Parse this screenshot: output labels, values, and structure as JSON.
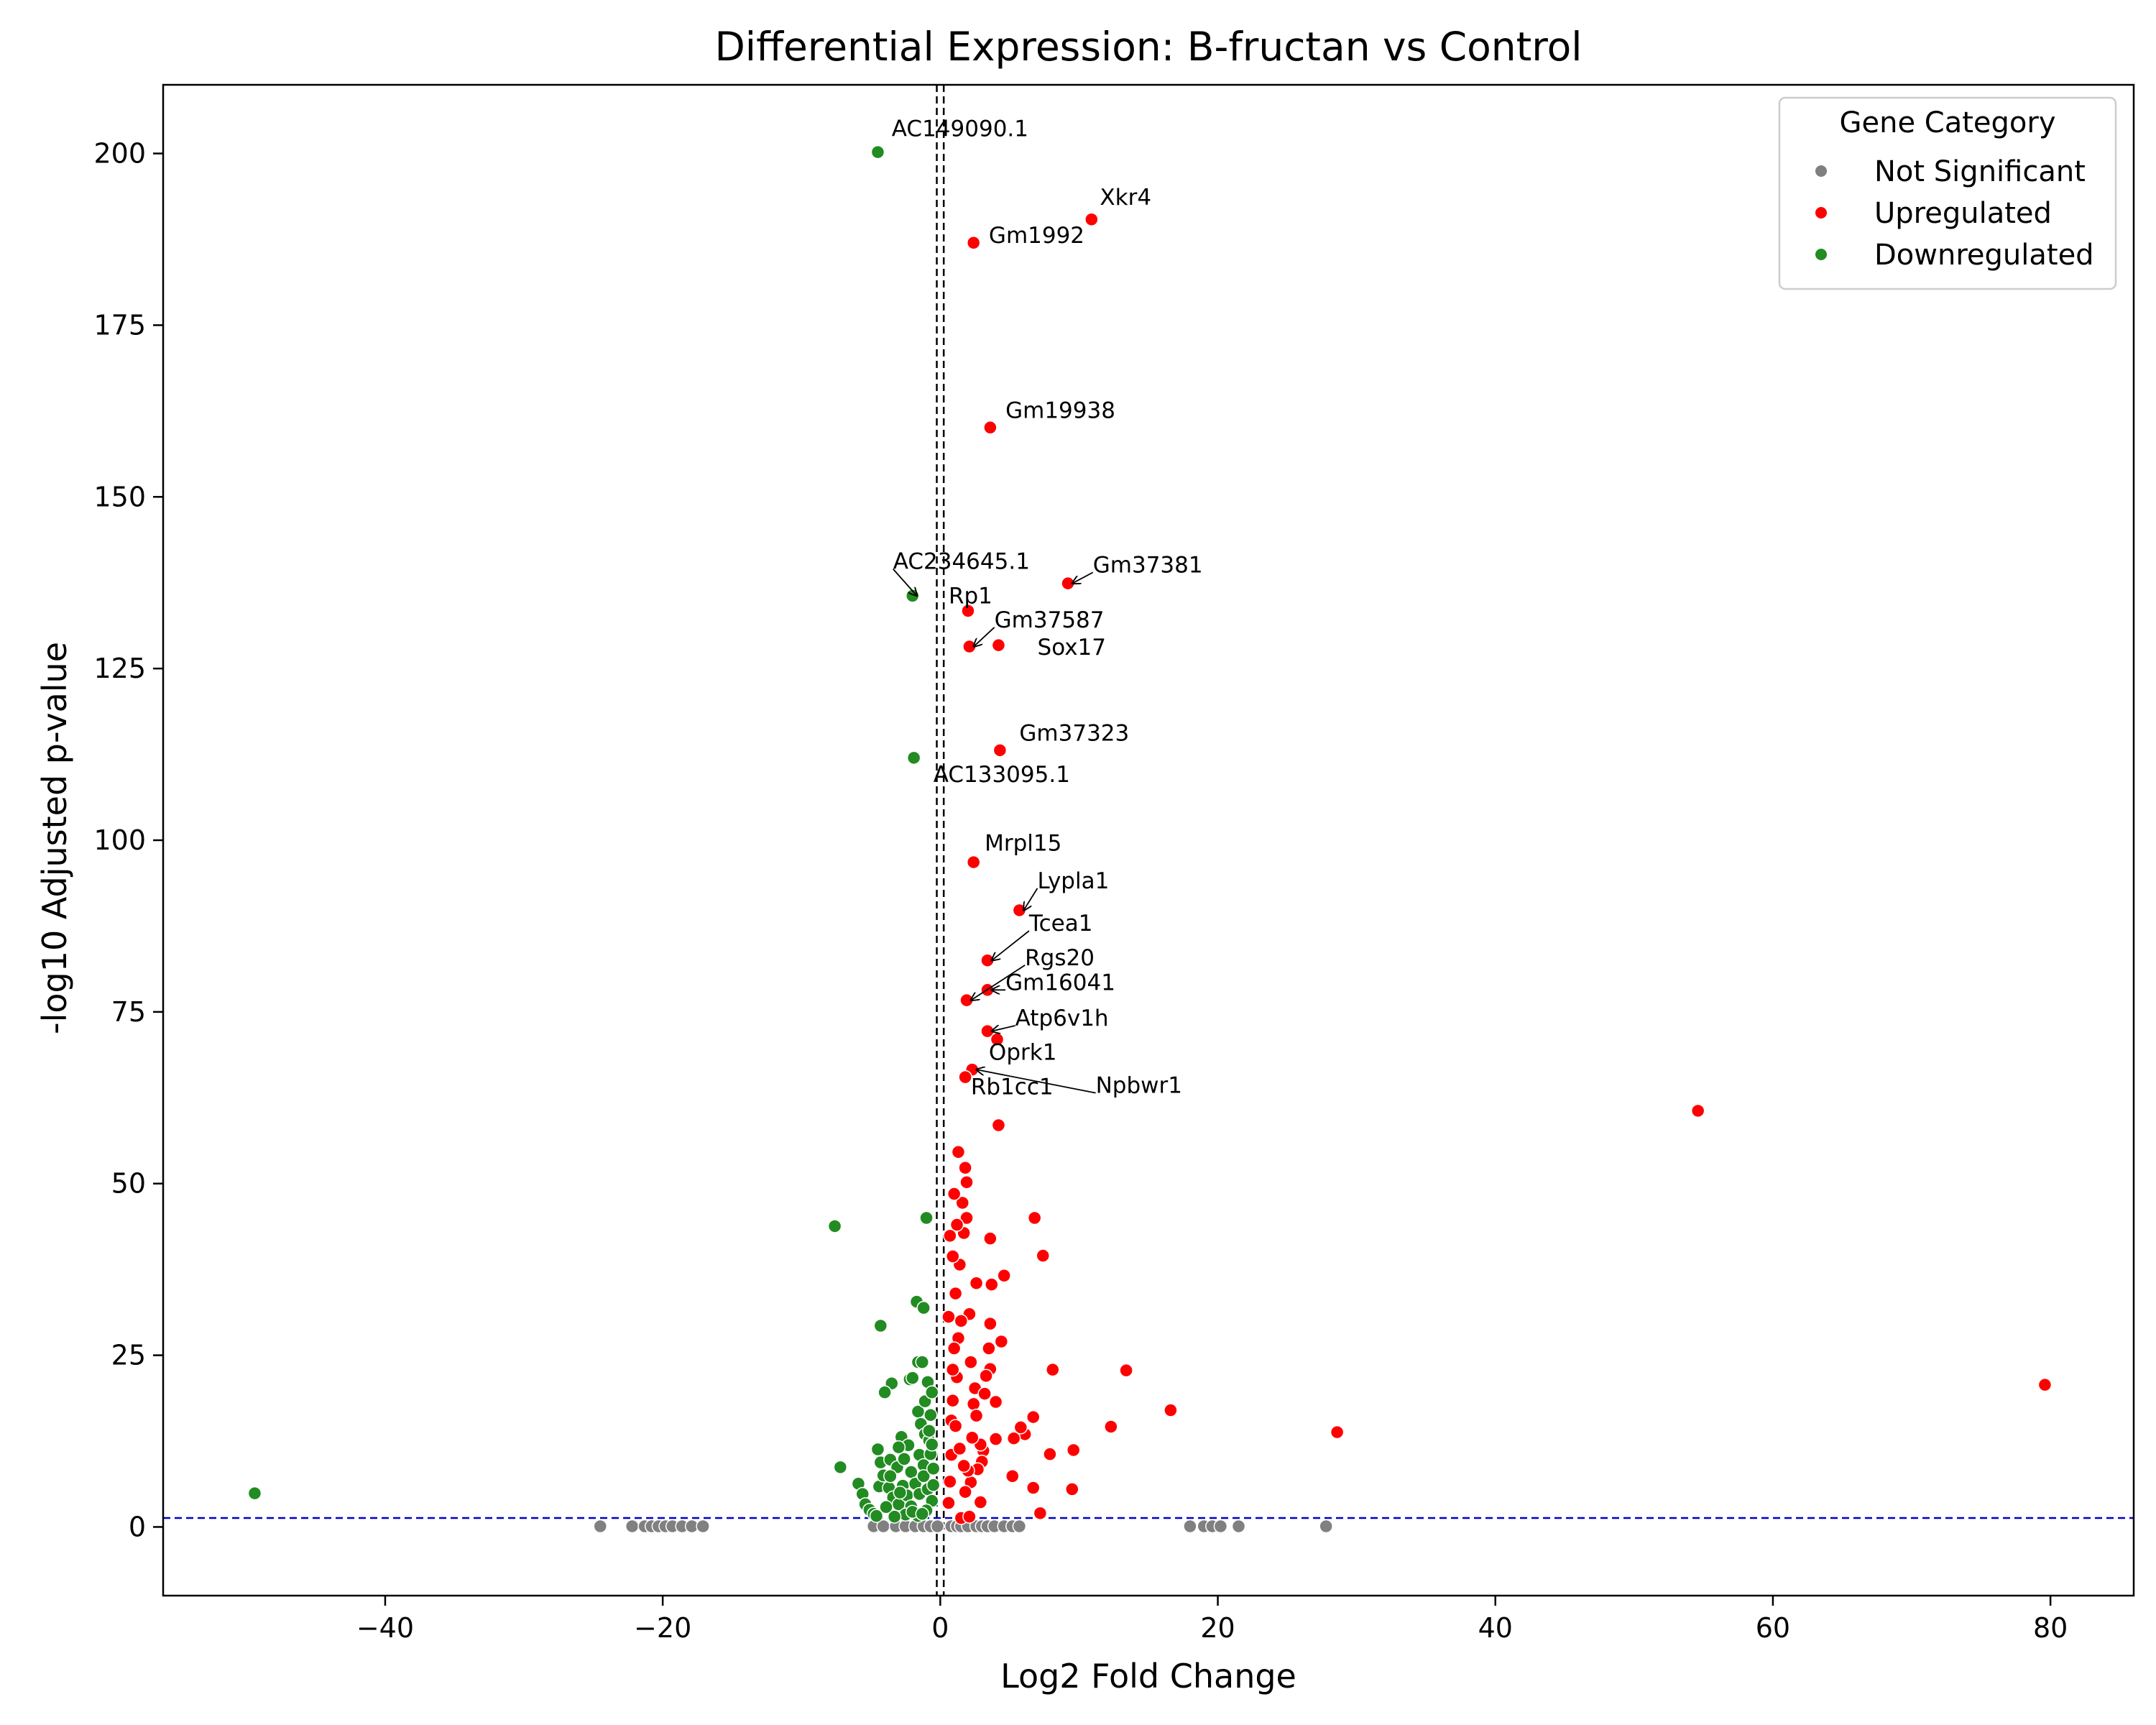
{
  "chart_data": {
    "type": "scatter",
    "title": "Differential Expression: B-fructan vs Control",
    "xlabel": "Log2 Fold Change",
    "ylabel": "-log10 Adjusted p-value",
    "xlim": [
      -56,
      86
    ],
    "ylim": [
      -10,
      210
    ],
    "xticks": [
      -40,
      -20,
      0,
      20,
      40,
      60,
      80
    ],
    "yticks": [
      0,
      25,
      50,
      75,
      100,
      125,
      150,
      175,
      200
    ],
    "tick_labels_x": [
      "−40",
      "−20",
      "0",
      "20",
      "40",
      "60",
      "80"
    ],
    "tick_labels_y": [
      "0",
      "25",
      "50",
      "75",
      "100",
      "125",
      "150",
      "175",
      "200"
    ],
    "grid": false,
    "thresholds": {
      "pvalue_line": 1.3,
      "fold_change_lines": [
        -0.25,
        0.25
      ],
      "pvalue_color": "#0000cc",
      "fold_change_color": "#000000"
    },
    "legend": {
      "title": "Gene Category",
      "placement": "top-right",
      "entries": [
        "Not Significant",
        "Upregulated",
        "Downregulated"
      ]
    },
    "colors": {
      "Not Significant": "#808080",
      "Upregulated": "#ff0000",
      "Downregulated": "#228b22"
    },
    "series": [
      {
        "name": "Not Significant",
        "points": [
          [
            -24.5,
            0.1
          ],
          [
            -22.2,
            0.1
          ],
          [
            -21.3,
            0.1
          ],
          [
            -20.8,
            0.1
          ],
          [
            -20.3,
            0.1
          ],
          [
            -19.8,
            0.1
          ],
          [
            -19.3,
            0.1
          ],
          [
            -18.6,
            0.1
          ],
          [
            -17.9,
            0.1
          ],
          [
            -17.1,
            0.1
          ],
          [
            -4.8,
            0.1
          ],
          [
            -4.1,
            0.1
          ],
          [
            -3.2,
            0.1
          ],
          [
            -2.5,
            0.1
          ],
          [
            -1.8,
            0.1
          ],
          [
            -1.2,
            0.1
          ],
          [
            -0.7,
            0.1
          ],
          [
            -0.2,
            0.1
          ],
          [
            0.8,
            0.1
          ],
          [
            1.2,
            0.1
          ],
          [
            1.5,
            0.1
          ],
          [
            2.0,
            0.1
          ],
          [
            2.6,
            0.1
          ],
          [
            3.0,
            0.1
          ],
          [
            3.4,
            0.1
          ],
          [
            3.9,
            0.1
          ],
          [
            4.6,
            0.1
          ],
          [
            5.2,
            0.1
          ],
          [
            5.7,
            0.1
          ],
          [
            18.0,
            0.1
          ],
          [
            19.0,
            0.1
          ],
          [
            19.6,
            0.1
          ],
          [
            20.2,
            0.1
          ],
          [
            21.5,
            0.1
          ],
          [
            27.8,
            0.1
          ]
        ]
      },
      {
        "name": "Upregulated",
        "points": [
          [
            10.9,
            190.4
          ],
          [
            2.4,
            187.0
          ],
          [
            3.6,
            160.1
          ],
          [
            9.2,
            137.4
          ],
          [
            2.0,
            133.4
          ],
          [
            4.2,
            128.4
          ],
          [
            2.1,
            128.2
          ],
          [
            4.3,
            113.1
          ],
          [
            2.4,
            96.8
          ],
          [
            5.7,
            89.8
          ],
          [
            3.4,
            82.5
          ],
          [
            3.4,
            78.2
          ],
          [
            1.9,
            76.7
          ],
          [
            3.4,
            72.2
          ],
          [
            4.1,
            71.0
          ],
          [
            2.3,
            66.6
          ],
          [
            1.8,
            65.5
          ],
          [
            54.6,
            60.6
          ],
          [
            4.2,
            58.5
          ],
          [
            79.6,
            20.7
          ],
          [
            28.6,
            13.8
          ],
          [
            16.6,
            17.0
          ],
          [
            13.4,
            22.8
          ],
          [
            12.3,
            14.6
          ],
          [
            9.6,
            11.2
          ],
          [
            9.5,
            5.5
          ],
          [
            8.1,
            22.9
          ],
          [
            7.9,
            10.6
          ],
          [
            7.4,
            39.5
          ],
          [
            7.2,
            2.0
          ],
          [
            6.8,
            45.0
          ],
          [
            6.7,
            5.7
          ],
          [
            6.7,
            16.0
          ],
          [
            6.1,
            13.5
          ],
          [
            5.8,
            14.5
          ],
          [
            5.3,
            12.9
          ],
          [
            5.2,
            7.4
          ],
          [
            4.6,
            36.6
          ],
          [
            4.4,
            27.0
          ],
          [
            4.0,
            18.2
          ],
          [
            4.0,
            12.8
          ],
          [
            3.7,
            35.3
          ],
          [
            3.6,
            42.0
          ],
          [
            3.6,
            29.6
          ],
          [
            3.6,
            23.0
          ],
          [
            3.5,
            26.0
          ],
          [
            3.3,
            22.0
          ],
          [
            3.1,
            11.1
          ],
          [
            3.0,
            9.5
          ],
          [
            2.9,
            12.0
          ],
          [
            2.9,
            3.6
          ],
          [
            2.7,
            8.4
          ],
          [
            2.6,
            35.5
          ],
          [
            2.5,
            20.2
          ],
          [
            2.4,
            17.9
          ],
          [
            2.3,
            13.0
          ],
          [
            2.2,
            24.0
          ],
          [
            2.2,
            6.5
          ],
          [
            2.1,
            31.0
          ],
          [
            2.0,
            8.2
          ],
          [
            1.9,
            45.0
          ],
          [
            1.9,
            50.2
          ],
          [
            1.8,
            52.3
          ],
          [
            1.7,
            42.8
          ],
          [
            1.6,
            47.2
          ],
          [
            1.5,
            30.0
          ],
          [
            1.4,
            38.2
          ],
          [
            1.3,
            54.6
          ],
          [
            1.3,
            27.5
          ],
          [
            1.2,
            44.0
          ],
          [
            1.2,
            21.8
          ],
          [
            1.1,
            34.0
          ],
          [
            1.0,
            48.5
          ],
          [
            1.0,
            26.0
          ],
          [
            0.9,
            18.4
          ],
          [
            0.9,
            39.4
          ],
          [
            0.8,
            15.5
          ],
          [
            0.8,
            10.5
          ],
          [
            0.7,
            42.4
          ],
          [
            0.7,
            6.6
          ],
          [
            0.6,
            30.6
          ],
          [
            0.6,
            3.5
          ],
          [
            1.5,
            1.3
          ],
          [
            2.1,
            1.5
          ],
          [
            1.7,
            8.9
          ],
          [
            1.4,
            11.4
          ],
          [
            1.1,
            14.7
          ],
          [
            0.9,
            22.9
          ],
          [
            2.6,
            16.2
          ],
          [
            3.2,
            19.4
          ],
          [
            1.8,
            5.1
          ]
        ]
      },
      {
        "name": "Downregulated",
        "points": [
          [
            -4.5,
            200.2
          ],
          [
            -2.0,
            135.6
          ],
          [
            -1.9,
            112.0
          ],
          [
            -1.0,
            45.0
          ],
          [
            -7.6,
            43.8
          ],
          [
            -49.4,
            4.9
          ],
          [
            -1.7,
            32.8
          ],
          [
            -1.2,
            31.9
          ],
          [
            -4.3,
            29.3
          ],
          [
            -1.6,
            24.0
          ],
          [
            -1.3,
            24.0
          ],
          [
            -0.9,
            21.1
          ],
          [
            -2.2,
            21.5
          ],
          [
            -2.0,
            21.7
          ],
          [
            -3.5,
            20.9
          ],
          [
            -4.0,
            19.6
          ],
          [
            -1.6,
            16.8
          ],
          [
            -1.4,
            15.0
          ],
          [
            -1.1,
            13.5
          ],
          [
            -0.8,
            12.6
          ],
          [
            -2.8,
            13.1
          ],
          [
            -2.3,
            11.9
          ],
          [
            -3.0,
            11.6
          ],
          [
            -4.5,
            11.3
          ],
          [
            -4.3,
            9.4
          ],
          [
            -3.6,
            9.8
          ],
          [
            -3.1,
            8.7
          ],
          [
            -2.6,
            9.9
          ],
          [
            -2.1,
            8.0
          ],
          [
            -1.5,
            10.5
          ],
          [
            -1.2,
            9.0
          ],
          [
            -0.7,
            10.6
          ],
          [
            -7.2,
            8.7
          ],
          [
            -5.9,
            6.3
          ],
          [
            -5.6,
            4.8
          ],
          [
            -5.4,
            3.3
          ],
          [
            -5.1,
            2.5
          ],
          [
            -4.8,
            1.9
          ],
          [
            -4.4,
            5.9
          ],
          [
            -4.1,
            7.5
          ],
          [
            -3.7,
            5.7
          ],
          [
            -3.4,
            4.3
          ],
          [
            -3.0,
            3.3
          ],
          [
            -2.7,
            6.0
          ],
          [
            -2.4,
            4.6
          ],
          [
            -2.1,
            3.0
          ],
          [
            -1.8,
            6.3
          ],
          [
            -1.5,
            4.8
          ],
          [
            -1.2,
            7.4
          ],
          [
            -0.9,
            5.5
          ],
          [
            -0.6,
            3.8
          ],
          [
            -0.5,
            8.5
          ],
          [
            -0.5,
            6.1
          ],
          [
            -0.6,
            12.0
          ],
          [
            -1.0,
            2.4
          ],
          [
            -1.6,
            1.6
          ],
          [
            -2.5,
            1.8
          ],
          [
            -3.3,
            1.5
          ],
          [
            -4.6,
            1.6
          ],
          [
            -3.9,
            2.9
          ],
          [
            -2.0,
            2.2
          ],
          [
            -1.3,
            1.9
          ],
          [
            -0.8,
            14.0
          ],
          [
            -0.7,
            16.3
          ],
          [
            -1.1,
            18.3
          ],
          [
            -0.6,
            19.6
          ],
          [
            -3.6,
            7.4
          ],
          [
            -2.9,
            5.0
          ]
        ]
      }
    ],
    "annotations": [
      {
        "label": "AC149090.1",
        "x": -4.5,
        "y": 200.2,
        "tx": -3.5,
        "ty": 202.5,
        "arrow": false
      },
      {
        "label": "Xkr4",
        "x": 10.9,
        "y": 190.4,
        "tx": 11.5,
        "ty": 192.5,
        "arrow": false
      },
      {
        "label": "Gm1992",
        "x": 2.4,
        "y": 187.0,
        "tx": 3.5,
        "ty": 187.0,
        "arrow": false
      },
      {
        "label": "Gm19938",
        "x": 3.6,
        "y": 160.1,
        "tx": 4.7,
        "ty": 161.5,
        "arrow": false
      },
      {
        "label": "AC234645.1",
        "x": -2.0,
        "y": 135.6,
        "tx": -3.4,
        "ty": 139.5,
        "arrow": true
      },
      {
        "label": "Gm37381",
        "x": 9.2,
        "y": 137.4,
        "tx": 11.0,
        "ty": 139.0,
        "arrow": true
      },
      {
        "label": "Rp1",
        "x": 2.0,
        "y": 133.4,
        "tx": 0.6,
        "ty": 134.5,
        "arrow": false
      },
      {
        "label": "Gm37587",
        "x": 2.1,
        "y": 128.2,
        "tx": 3.9,
        "ty": 131.0,
        "arrow": true
      },
      {
        "label": "Sox17",
        "x": 4.2,
        "y": 128.4,
        "tx": 7.0,
        "ty": 127.0,
        "arrow": false
      },
      {
        "label": "Gm37323",
        "x": 4.3,
        "y": 113.1,
        "tx": 5.7,
        "ty": 114.5,
        "arrow": false
      },
      {
        "label": "AC133095.1",
        "x": -1.9,
        "y": 112.0,
        "tx": -0.5,
        "ty": 108.5,
        "arrow": false
      },
      {
        "label": "Mrpl15",
        "x": 2.4,
        "y": 96.8,
        "tx": 3.2,
        "ty": 98.5,
        "arrow": false
      },
      {
        "label": "Lypla1",
        "x": 5.7,
        "y": 89.8,
        "tx": 7.0,
        "ty": 93.0,
        "arrow": true
      },
      {
        "label": "Tcea1",
        "x": 3.4,
        "y": 82.5,
        "tx": 6.4,
        "ty": 86.8,
        "arrow": true
      },
      {
        "label": "Rgs20",
        "x": 1.9,
        "y": 76.7,
        "tx": 6.1,
        "ty": 81.8,
        "arrow": true
      },
      {
        "label": "Gm16041",
        "x": 3.4,
        "y": 78.2,
        "tx": 4.7,
        "ty": 78.2,
        "arrow": true
      },
      {
        "label": "Atp6v1h",
        "x": 3.4,
        "y": 72.2,
        "tx": 5.4,
        "ty": 73.0,
        "arrow": true
      },
      {
        "label": "Oprk1",
        "x": 4.1,
        "y": 71.0,
        "tx": 3.5,
        "ty": 68.0,
        "arrow": false
      },
      {
        "label": "Npbwr1",
        "x": 2.3,
        "y": 66.6,
        "tx": 11.2,
        "ty": 63.2,
        "arrow": true
      },
      {
        "label": "Rb1cc1",
        "x": 1.8,
        "y": 65.5,
        "tx": 2.2,
        "ty": 63.0,
        "arrow": false
      }
    ]
  }
}
